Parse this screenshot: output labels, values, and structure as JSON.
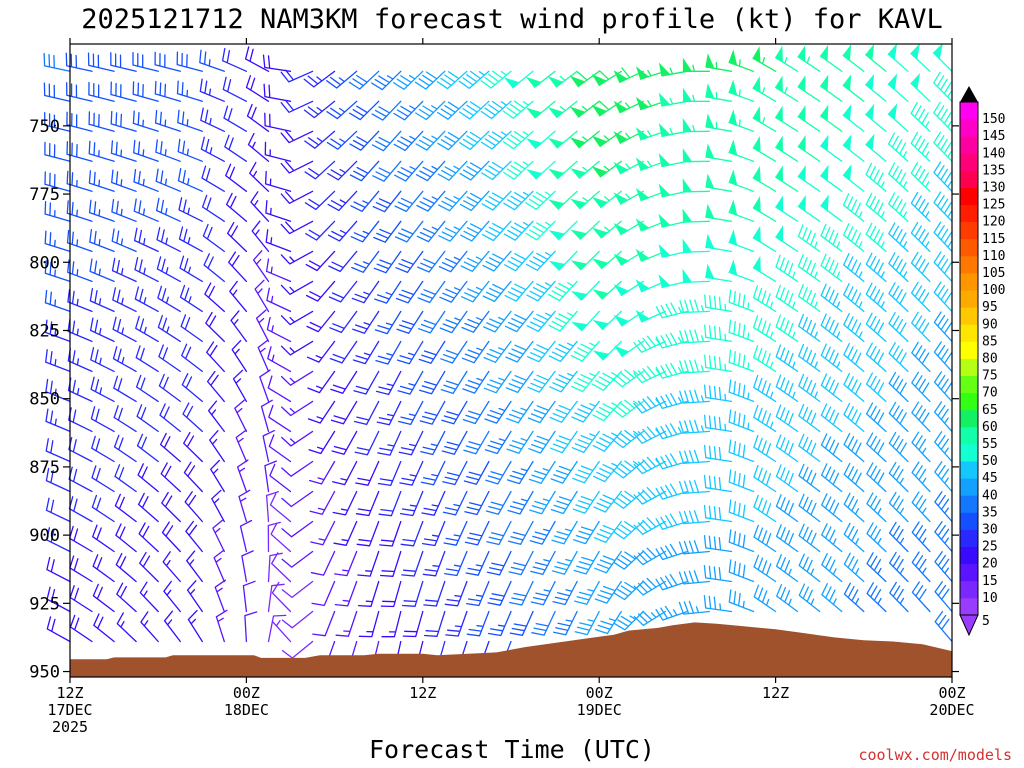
{
  "chart_data": {
    "type": "wind-barb-time-height",
    "title": "2025121712 NAM3KM forecast wind profile (kt) for KAVL",
    "xlabel": "Forecast Time (UTC)",
    "ylabel": "",
    "credit": "coolwx.com/models",
    "y_axis": {
      "scale": "pressure-hPa-inverted",
      "range": [
        952,
        720
      ],
      "ticks": [
        750,
        775,
        800,
        825,
        850,
        875,
        900,
        925,
        950
      ]
    },
    "x_axis": {
      "range_hours": [
        0,
        60
      ],
      "ticks": [
        {
          "hour": 0,
          "line1": "12Z",
          "line2": "17DEC",
          "line3": "2025"
        },
        {
          "hour": 12,
          "line1": "00Z",
          "line2": "18DEC",
          "line3": ""
        },
        {
          "hour": 24,
          "line1": "12Z",
          "line2": "",
          "line3": ""
        },
        {
          "hour": 36,
          "line1": "00Z",
          "line2": "19DEC",
          "line3": ""
        },
        {
          "hour": 48,
          "line1": "12Z",
          "line2": "",
          "line3": ""
        },
        {
          "hour": 60,
          "line1": "00Z",
          "line2": "20DEC",
          "line3": ""
        }
      ]
    },
    "colorbar": {
      "label_values": [
        5,
        10,
        15,
        20,
        25,
        30,
        35,
        40,
        45,
        50,
        55,
        60,
        65,
        70,
        75,
        80,
        85,
        90,
        95,
        100,
        105,
        110,
        115,
        120,
        125,
        130,
        135,
        140,
        145,
        150
      ],
      "colors": [
        "#9a3cff",
        "#7a28ff",
        "#5a14ff",
        "#3a0aff",
        "#2828ff",
        "#1450ff",
        "#1478ff",
        "#14a0ff",
        "#14c8ff",
        "#14ffd2",
        "#14ffaa",
        "#14f064",
        "#32ff14",
        "#64ff14",
        "#b4ff14",
        "#ffff00",
        "#ffe600",
        "#ffc800",
        "#ffaa00",
        "#ff9600",
        "#ff7800",
        "#ff5a00",
        "#ff3c00",
        "#ff1e00",
        "#ff0000",
        "#ff0050",
        "#ff0078",
        "#ff00a0",
        "#ff00c8",
        "#ff00f0"
      ]
    },
    "terrain": {
      "color": "#a0522d",
      "hours": [
        0,
        2.5,
        3,
        6.5,
        7,
        12.5,
        13,
        16,
        17,
        20,
        21,
        24,
        25,
        29,
        31,
        33,
        35,
        37,
        38,
        40,
        41,
        42.5,
        44,
        46,
        48,
        50,
        52,
        54,
        56,
        58,
        60
      ],
      "surface_pressure_hPa": [
        945.5,
        945.5,
        944.8,
        944.8,
        944,
        944,
        945,
        945,
        944,
        944,
        943.5,
        943.5,
        944,
        943,
        941,
        939.5,
        938,
        936.5,
        935,
        934,
        933,
        932,
        932.5,
        933.5,
        934.5,
        936,
        937.5,
        938.5,
        939,
        940,
        942.5
      ]
    },
    "wind_profile": {
      "times_hours": [
        0,
        1.5,
        3,
        4.5,
        6,
        7.5,
        9,
        10.5,
        12,
        13.5,
        15,
        16.5,
        18,
        19.5,
        21,
        22.5,
        24,
        25.5,
        27,
        28.5,
        30,
        31.5,
        33,
        34.5,
        36,
        37.5,
        39,
        40.5,
        42,
        43.5,
        45,
        46.5,
        48,
        49.5,
        51,
        52.5,
        54,
        55.5,
        57,
        58.5,
        60
      ],
      "levels_hPa": [
        730,
        741,
        752,
        763,
        774,
        785,
        796,
        807,
        818,
        829,
        840,
        851,
        862,
        873,
        884,
        895,
        906,
        917,
        928,
        939,
        950
      ],
      "note_speed": "speed in kt, barbs colored by speed per colorbar",
      "keyframes": [
        {
          "hour": 0,
          "upper_spd": 30,
          "upper_dir": 282,
          "lower_spd": 18,
          "lower_dir": 300
        },
        {
          "hour": 9,
          "upper_spd": 28,
          "upper_dir": 285,
          "lower_spd": 15,
          "lower_dir": 330
        },
        {
          "hour": 14,
          "upper_spd": 18,
          "upper_dir": 300,
          "lower_spd": 6,
          "lower_dir": 20
        },
        {
          "hour": 17,
          "upper_spd": 22,
          "upper_dir": 235,
          "lower_spd": 8,
          "lower_dir": 200
        },
        {
          "hour": 22,
          "upper_spd": 32,
          "upper_dir": 225,
          "lower_spd": 15,
          "lower_dir": 190
        },
        {
          "hour": 30,
          "upper_spd": 45,
          "upper_dir": 230,
          "lower_spd": 25,
          "lower_dir": 200
        },
        {
          "hour": 37,
          "upper_spd": 60,
          "upper_dir": 235,
          "lower_spd": 35,
          "lower_dir": 205
        },
        {
          "hour": 42,
          "upper_spd": 55,
          "upper_dir": 260,
          "lower_spd": 35,
          "lower_dir": 250
        },
        {
          "hour": 48,
          "upper_spd": 55,
          "upper_dir": 300,
          "lower_spd": 35,
          "lower_dir": 305
        },
        {
          "hour": 60,
          "upper_spd": 48,
          "upper_dir": 315,
          "lower_spd": 30,
          "lower_dir": 320
        }
      ]
    }
  }
}
